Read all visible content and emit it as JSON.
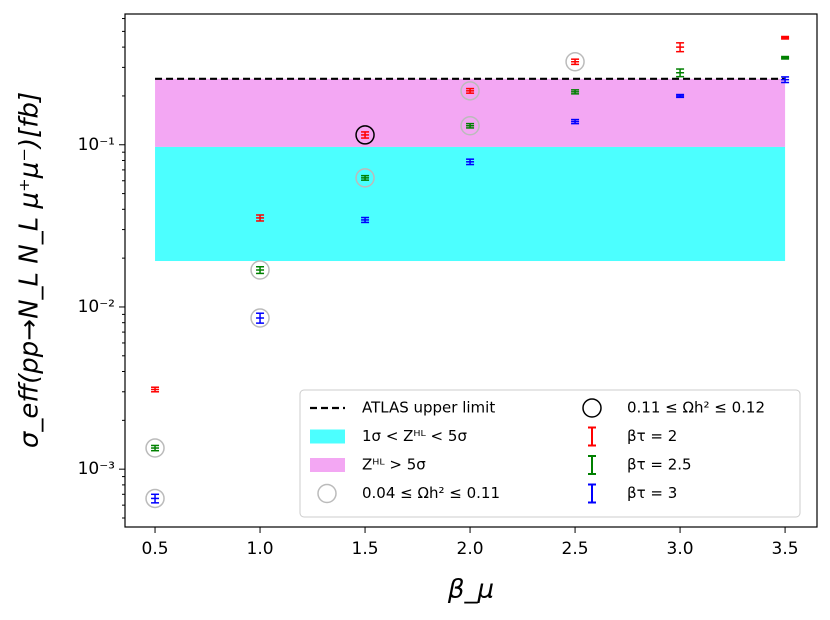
{
  "chart_data": {
    "type": "errorbar",
    "ylabel": "σ_eff(pp→N_L N_L μ⁺μ⁻)[fb]",
    "xlabel": "β_μ",
    "log_y": true,
    "xlim": [
      0.357,
      3.652
    ],
    "ylim": [
      0.00044,
      0.64
    ],
    "xticks": [
      0.5,
      {
        "value": 1,
        "label": "1.0"
      },
      1.5,
      {
        "value": 2,
        "label": "2.0"
      },
      2.5,
      {
        "value": 3,
        "label": "3.0"
      },
      3.5
    ],
    "yticks": [
      {
        "value": 0.001,
        "label": "10⁻³"
      },
      {
        "value": 0.01,
        "label": "10⁻²"
      },
      {
        "value": 0.1,
        "label": "10⁻¹"
      }
    ],
    "x": [
      0.5,
      1,
      1.5,
      2,
      2.5,
      3,
      3.5
    ],
    "hline": {
      "name": "ATLAS upper limit",
      "y": 0.255,
      "x": [
        0.5,
        3.5
      ],
      "color": "#000000"
    },
    "bands": [
      {
        "name": "1σ < Zᴴᴸ < 5σ",
        "ymin": 0.0192,
        "ymax": 0.097,
        "x": [
          0.5,
          3.5
        ],
        "color": "#00ffff"
      },
      {
        "name": "Zᴴᴸ > 5σ",
        "ymin": 0.097,
        "ymax": 0.255,
        "x": [
          0.5,
          3.5
        ],
        "color": "#ee82ee"
      }
    ],
    "circles": [
      {
        "name": "0.04 ≤ Ωh² ≤ 0.11",
        "color": "#bbbbbb",
        "x": [
          0.5,
          0.5,
          1,
          1,
          1.5,
          2,
          2,
          2.5
        ],
        "y": [
          0.00135,
          0.00066,
          0.0169,
          0.00855,
          0.0625,
          0.215,
          0.131,
          0.325
        ]
      },
      {
        "name": "0.11 ≤ Ωh² ≤ 0.12",
        "color": "#000000",
        "x": [
          1.5
        ],
        "y": [
          0.115
        ]
      }
    ],
    "series": [
      {
        "name": "βτ = 2",
        "color": "#ff0000",
        "values": [
          0.0031,
          0.0354,
          0.115,
          0.215,
          0.325,
          0.4,
          0.457
        ],
        "errors": [
          0.0001,
          0.0015,
          0.005,
          0.007,
          0.012,
          0.025,
          0.008
        ]
      },
      {
        "name": "βτ = 2.5",
        "color": "#008000",
        "values": [
          0.00135,
          0.0169,
          0.0625,
          0.131,
          0.212,
          0.278,
          0.344
        ],
        "errors": [
          5e-05,
          0.0008,
          0.002,
          0.004,
          0.006,
          0.015,
          0.006
        ]
      },
      {
        "name": "βτ = 3",
        "color": "#0000ff",
        "values": [
          0.00066,
          0.00855,
          0.0344,
          0.0785,
          0.139,
          0.2,
          0.252
        ],
        "errors": [
          4e-05,
          0.0006,
          0.0012,
          0.003,
          0.004,
          0.004,
          0.01
        ]
      }
    ]
  }
}
